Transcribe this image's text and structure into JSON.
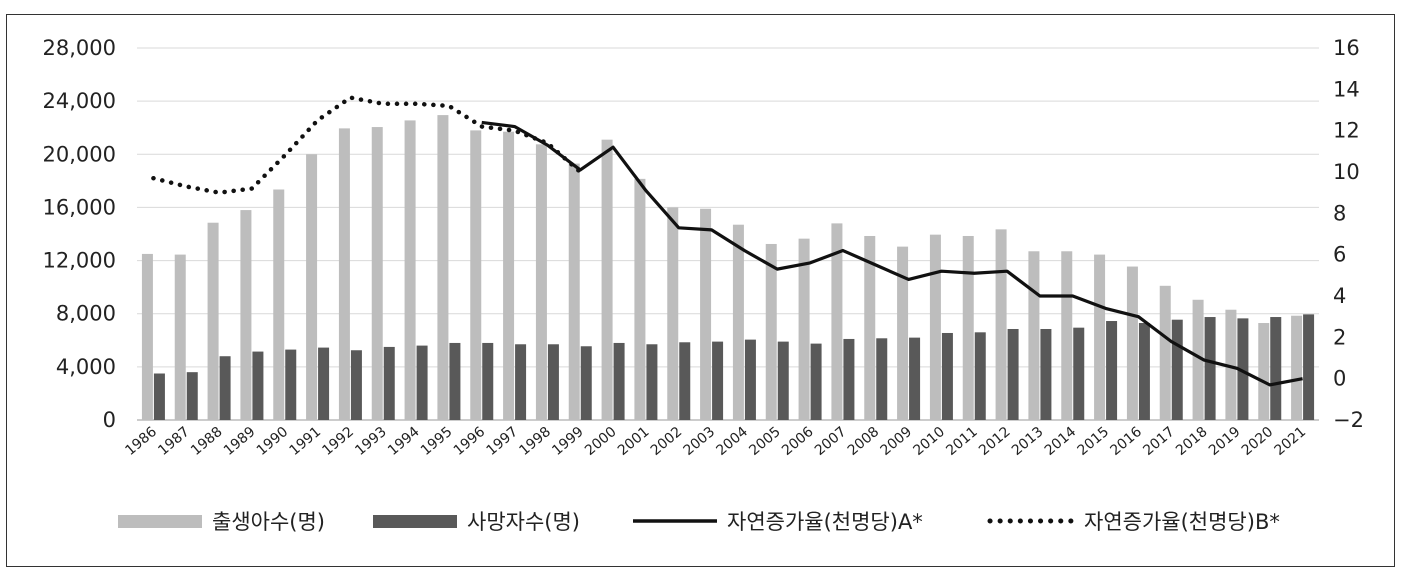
{
  "chart_data": {
    "type": "bar",
    "title": "",
    "xlabel": "",
    "ylabel": "",
    "categories": [
      "1986",
      "1987",
      "1988",
      "1989",
      "1990",
      "1991",
      "1992",
      "1993",
      "1994",
      "1995",
      "1996",
      "1997",
      "1998",
      "1999",
      "2000",
      "2001",
      "2002",
      "2003",
      "2004",
      "2005",
      "2006",
      "2007",
      "2008",
      "2009",
      "2010",
      "2011",
      "2012",
      "2013",
      "2014",
      "2015",
      "2016",
      "2017",
      "2018",
      "2019",
      "2020",
      "2021"
    ],
    "y_left": {
      "range": [
        0,
        28000
      ],
      "ticks": [
        "28,000",
        "24,000",
        "20,000",
        "16,000",
        "12,000",
        "8,000",
        "4,000",
        "0"
      ],
      "tick_values": [
        28000,
        24000,
        20000,
        16000,
        12000,
        8000,
        4000,
        0
      ]
    },
    "y_right": {
      "range": [
        -2,
        16
      ],
      "ticks": [
        "16",
        "14",
        "12",
        "10",
        "8",
        "6",
        "4",
        "2",
        "0",
        "−2"
      ],
      "tick_values": [
        16,
        14,
        12,
        10,
        8,
        6,
        4,
        2,
        0,
        -2
      ]
    },
    "grid": true,
    "legend_position": "bottom",
    "series": [
      {
        "name": "출생아수(명)",
        "type": "bar",
        "axis": "left",
        "color": "#bdbdbd",
        "values": [
          12500,
          12450,
          14850,
          15800,
          17350,
          20000,
          21950,
          22050,
          22550,
          22950,
          21800,
          21700,
          20750,
          19300,
          21100,
          18150,
          16000,
          15900,
          14700,
          13250,
          13650,
          14800,
          13850,
          13050,
          13950,
          13850,
          14350,
          12700,
          12700,
          12450,
          11550,
          10100,
          9050,
          8300,
          7300,
          7850
        ]
      },
      {
        "name": "사망자수(명)",
        "type": "bar",
        "axis": "left",
        "color": "#595959",
        "values": [
          3500,
          3600,
          4800,
          5150,
          5300,
          5450,
          5250,
          5500,
          5600,
          5800,
          5800,
          5700,
          5700,
          5550,
          5800,
          5700,
          5850,
          5900,
          6050,
          5900,
          5750,
          6100,
          6150,
          6200,
          6550,
          6600,
          6850,
          6850,
          6950,
          7450,
          7300,
          7550,
          7750,
          7650,
          7750,
          7950
        ]
      },
      {
        "name": "자연증가율(천명당)A*",
        "type": "line",
        "axis": "right",
        "color": "#111111",
        "style": "solid",
        "x": [
          "1996",
          "1997",
          "1998",
          "1999",
          "2000",
          "2001",
          "2002",
          "2003",
          "2004",
          "2005",
          "2006",
          "2007",
          "2008",
          "2009",
          "2010",
          "2011",
          "2012",
          "2013",
          "2014",
          "2015",
          "2016",
          "2017",
          "2018",
          "2019",
          "2020",
          "2021"
        ],
        "values": [
          12.4,
          12.2,
          11.3,
          10.1,
          11.2,
          9.1,
          7.3,
          7.2,
          6.2,
          5.3,
          5.6,
          6.2,
          5.5,
          4.8,
          5.2,
          5.1,
          5.2,
          4.0,
          4.0,
          3.4,
          3.0,
          1.8,
          0.9,
          0.5,
          -0.3,
          0.0
        ]
      },
      {
        "name": "자연증가율(천명당)B*",
        "type": "line",
        "axis": "right",
        "color": "#111111",
        "style": "dotted",
        "x": [
          "1986",
          "1987",
          "1988",
          "1989",
          "1990",
          "1991",
          "1992",
          "1993",
          "1994",
          "1995",
          "1996",
          "1997",
          "1998",
          "1999"
        ],
        "values": [
          9.7,
          9.3,
          9.0,
          9.2,
          10.8,
          12.5,
          13.6,
          13.3,
          13.3,
          13.2,
          12.2,
          12.0,
          11.4,
          10.0
        ]
      }
    ]
  }
}
